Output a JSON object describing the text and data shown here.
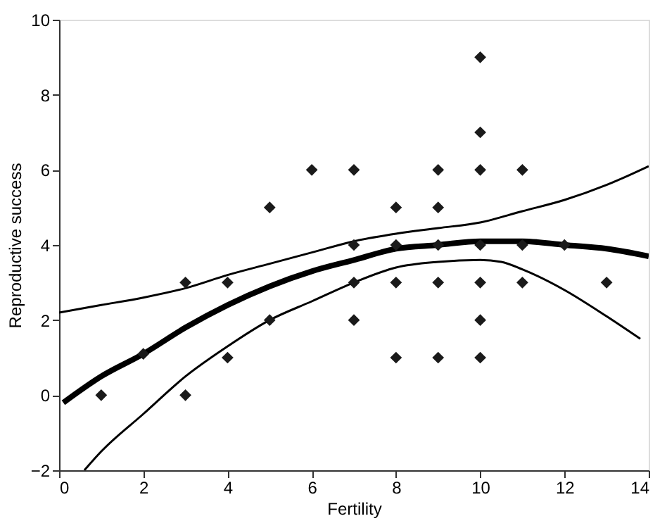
{
  "chart_data": {
    "type": "scatter",
    "xlabel": "Fertility",
    "ylabel": "Reproductive success",
    "xlim": [
      0,
      14
    ],
    "ylim": [
      -2,
      10
    ],
    "xticks": [
      0,
      2,
      4,
      6,
      8,
      10,
      12,
      14
    ],
    "yticks": [
      -2,
      0,
      2,
      4,
      6,
      8,
      10
    ],
    "grid": false,
    "series": [
      {
        "marker": "diamond",
        "color": "#1a1a1a",
        "x": [
          1,
          2,
          3,
          3,
          4,
          4,
          5,
          5,
          6,
          7,
          7,
          7,
          7,
          8,
          8,
          8,
          8,
          9,
          9,
          9,
          9,
          9,
          10,
          10,
          10,
          10,
          10,
          10,
          10,
          11,
          11,
          11,
          12,
          13
        ],
        "values": [
          0,
          1.1,
          3,
          0,
          3,
          1,
          5,
          2,
          6,
          6,
          4,
          3,
          2,
          5,
          4,
          3,
          1,
          6,
          5,
          4,
          3,
          1,
          9,
          7,
          6,
          4,
          3,
          2,
          1,
          6,
          4,
          3,
          4,
          3
        ]
      },
      {
        "type": "line",
        "color": "#000000",
        "x": [
          0.1,
          1,
          2,
          3,
          4,
          5,
          6,
          7,
          8,
          9,
          10,
          11,
          12,
          13,
          14
        ],
        "values": [
          -0.2,
          0.5,
          1.1,
          1.8,
          2.4,
          2.9,
          3.3,
          3.6,
          3.9,
          4.0,
          4.1,
          4.1,
          4.0,
          3.9,
          3.7
        ]
      },
      {
        "type": "line",
        "color": "#000000",
        "x": [
          0,
          1,
          2,
          3,
          4,
          5,
          6,
          7,
          8,
          9,
          10,
          11,
          12,
          13,
          14
        ],
        "values": [
          2.2,
          2.4,
          2.6,
          2.85,
          3.2,
          3.5,
          3.8,
          4.1,
          4.3,
          4.45,
          4.6,
          4.9,
          5.2,
          5.6,
          6.1
        ]
      },
      {
        "type": "line",
        "color": "#000000",
        "x": [
          0.6,
          1,
          2,
          3,
          4,
          5,
          6,
          7,
          8,
          9,
          10,
          10.5,
          11,
          12,
          13,
          13.8
        ],
        "values": [
          -2,
          -1.5,
          -0.5,
          0.5,
          1.3,
          2.0,
          2.5,
          3.0,
          3.4,
          3.55,
          3.6,
          3.55,
          3.35,
          2.8,
          2.1,
          1.5
        ]
      }
    ]
  }
}
